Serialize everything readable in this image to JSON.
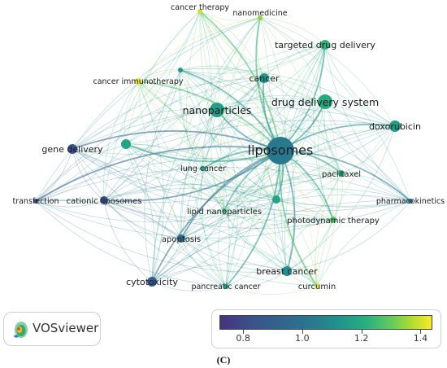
{
  "nodes": [
    {
      "id": "liposomes",
      "label": "liposomes",
      "score": 0.95
    },
    {
      "id": "drug-delivery-system",
      "label": "drug delivery system",
      "score": 1.12
    },
    {
      "id": "nanoparticles",
      "label": "nanoparticles",
      "score": 1.08
    },
    {
      "id": "targeted-drug-delivery",
      "label": "targeted drug delivery",
      "score": 1.15
    },
    {
      "id": "cancer",
      "label": "cancer",
      "score": 1.05
    },
    {
      "id": "cancer-therapy",
      "label": "cancer therapy",
      "score": 1.38
    },
    {
      "id": "nanomedicine",
      "label": "nanomedicine",
      "score": 1.3
    },
    {
      "id": "cancer-immunotherapy",
      "label": "cancer immunotherapy",
      "score": 1.42
    },
    {
      "id": "doxorubicin",
      "label": "doxorubicin",
      "score": 1.07
    },
    {
      "id": "gene-delivery",
      "label": "gene delivery",
      "score": 0.82
    },
    {
      "id": "paclitaxel",
      "label": "paclitaxel",
      "score": 1.15
    },
    {
      "id": "lung-cancer",
      "label": "lung cancer",
      "score": 1.1
    },
    {
      "id": "pharmacokinetics",
      "label": "pharmacokinetics",
      "score": 0.9
    },
    {
      "id": "transfection",
      "label": "transfection",
      "score": 0.8
    },
    {
      "id": "cationic-liposomes",
      "label": "cationic liposomes",
      "score": 0.82
    },
    {
      "id": "lipid-nanoparticles",
      "label": "lipid nanoparticles",
      "score": 1.2
    },
    {
      "id": "photodynamic-therapy",
      "label": "photodynamic therapy",
      "score": 1.22
    },
    {
      "id": "apoptosis",
      "label": "apoptosis",
      "score": 0.9
    },
    {
      "id": "breast-cancer",
      "label": "breast cancer",
      "score": 1.02
    },
    {
      "id": "cytotoxicity",
      "label": "cytotoxicity",
      "score": 0.85
    },
    {
      "id": "pancreatic-cancer",
      "label": "pancreatic cancer",
      "score": 1.1
    },
    {
      "id": "curcumin",
      "label": "curcumin",
      "score": 1.4
    },
    {
      "id": "unlabeled-a",
      "label": "",
      "score": 1.1
    },
    {
      "id": "unlabeled-b",
      "label": "",
      "score": 1.05
    },
    {
      "id": "unlabeled-c",
      "label": "",
      "score": 1.1
    }
  ],
  "branding": {
    "name": "VOSviewer"
  },
  "color_scale": {
    "ticks": [
      "0.8",
      "1.0",
      "1.2",
      "1.4"
    ],
    "min": 0.72,
    "max": 1.44,
    "colors": [
      "#46327e",
      "#3b528b",
      "#2c728e",
      "#21908d",
      "#27ad81",
      "#5cc863",
      "#aadc32",
      "#fde725"
    ]
  },
  "caption": "(C)"
}
